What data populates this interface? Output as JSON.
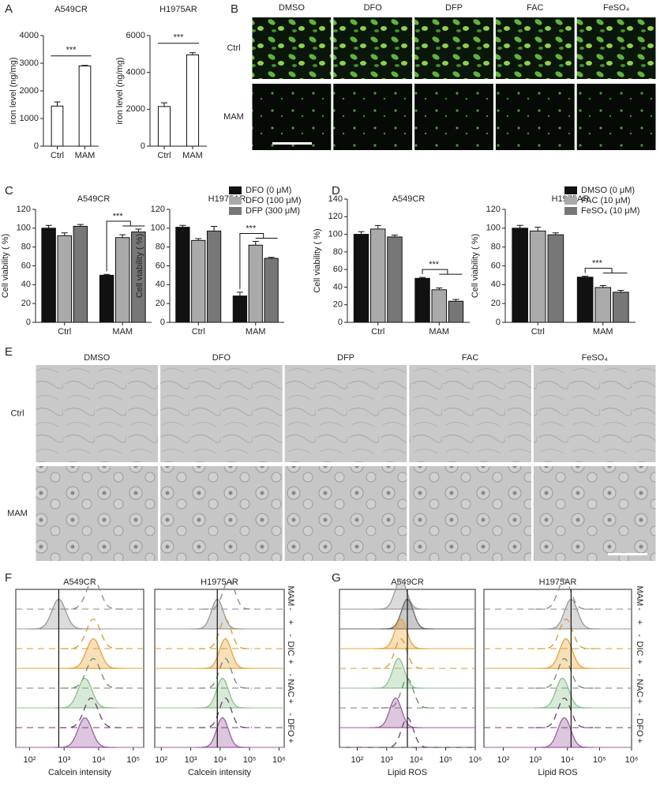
{
  "panels": {
    "A": "A",
    "B": "B",
    "C": "C",
    "D": "D",
    "E": "E",
    "F": "F",
    "G": "G"
  },
  "microscopy": {
    "fluorescence": {
      "columns": [
        "DMSO",
        "DFO",
        "DFP",
        "FAC",
        "FeSO₄"
      ],
      "rows": [
        "Ctrl",
        "MAM"
      ]
    },
    "brightfield": {
      "columns": [
        "DMSO",
        "DFO",
        "DFP",
        "FAC",
        "FeSO₄"
      ],
      "rows": [
        "Ctrl",
        "MAM"
      ]
    }
  },
  "chart_data": [
    {
      "type": "bar",
      "title": "A549CR",
      "ylabel": "iron level (ng/mg)",
      "categories": [
        "Ctrl",
        "MAM"
      ],
      "values": [
        1450,
        2900
      ],
      "errors": [
        150,
        20
      ],
      "color": "#ffffff",
      "ylim": [
        0,
        4000
      ],
      "yticks": [
        0,
        1000,
        2000,
        3000,
        4000
      ],
      "annotation": "***"
    },
    {
      "type": "bar",
      "title": "H1975AR",
      "ylabel": "iron level (ng/mg)",
      "categories": [
        "Ctrl",
        "MAM"
      ],
      "values": [
        2150,
        4950
      ],
      "errors": [
        200,
        120
      ],
      "color": "#ffffff",
      "ylim": [
        0,
        6000
      ],
      "yticks": [
        0,
        2000,
        4000,
        6000
      ],
      "annotation": "***"
    },
    {
      "type": "bar",
      "title": "A549CR",
      "ylabel": "Cell viability ( %)",
      "categories": [
        "Ctrl",
        "MAM"
      ],
      "series": [
        {
          "name": "DFO (0 μM)",
          "color": "#111111",
          "values": [
            100,
            50
          ],
          "errors": [
            3,
            1
          ]
        },
        {
          "name": "DFO (100 μM)",
          "color": "#aaaaaa",
          "values": [
            92,
            90
          ],
          "errors": [
            3,
            3
          ]
        },
        {
          "name": "DFP (300 μM)",
          "color": "#777777",
          "values": [
            102,
            96
          ],
          "errors": [
            2,
            3
          ]
        }
      ],
      "ylim": [
        0,
        120
      ],
      "yticks": [
        0,
        20,
        40,
        60,
        80,
        100,
        120
      ],
      "annotation": "***"
    },
    {
      "type": "bar",
      "title": "H1975AR",
      "ylabel": "Cell viability ( %)",
      "categories": [
        "Ctrl",
        "MAM"
      ],
      "series": [
        {
          "name": "DFO (0 μM)",
          "color": "#111111",
          "values": [
            101,
            28
          ],
          "errors": [
            2,
            4
          ]
        },
        {
          "name": "DFO (100 μM)",
          "color": "#aaaaaa",
          "values": [
            87,
            82
          ],
          "errors": [
            2,
            4
          ]
        },
        {
          "name": "DFP (300 μM)",
          "color": "#777777",
          "values": [
            97,
            68
          ],
          "errors": [
            5,
            1
          ]
        }
      ],
      "ylim": [
        0,
        120
      ],
      "yticks": [
        0,
        20,
        40,
        60,
        80,
        100,
        120
      ],
      "annotation": "***",
      "legend": true
    },
    {
      "type": "bar",
      "title": "A549CR",
      "ylabel": "Cell viability ( %)",
      "categories": [
        "Ctrl",
        "MAM"
      ],
      "series": [
        {
          "name": "DMSO (0 μM)",
          "color": "#111111",
          "values": [
            100,
            50
          ],
          "errors": [
            3,
            1
          ]
        },
        {
          "name": "FAC (10 μM)",
          "color": "#aaaaaa",
          "values": [
            106,
            37
          ],
          "errors": [
            4,
            2
          ]
        },
        {
          "name": "FeSO₄ (10 μM)",
          "color": "#777777",
          "values": [
            97,
            24
          ],
          "errors": [
            2,
            2
          ]
        }
      ],
      "ylim": [
        0,
        140
      ],
      "yticks": [
        0,
        20,
        40,
        60,
        80,
        100,
        120,
        140
      ],
      "annotation": "***"
    },
    {
      "type": "bar",
      "title": "H1975AR",
      "ylabel": "Cell viability ( %)",
      "categories": [
        "Ctrl",
        "MAM"
      ],
      "series": [
        {
          "name": "DMSO (0 μM)",
          "color": "#111111",
          "values": [
            100,
            48
          ],
          "errors": [
            3,
            1
          ]
        },
        {
          "name": "FAC (10 μM)",
          "color": "#aaaaaa",
          "values": [
            97,
            37
          ],
          "errors": [
            4,
            2
          ]
        },
        {
          "name": "FeSO₄ (10 μM)",
          "color": "#777777",
          "values": [
            93,
            32
          ],
          "errors": [
            2,
            2
          ]
        }
      ],
      "ylim": [
        0,
        120
      ],
      "yticks": [
        0,
        20,
        40,
        60,
        80,
        100,
        120
      ],
      "annotation": "***",
      "legend": true
    },
    {
      "type": "density",
      "title": "A549CR",
      "xlabel": "Calcein intensity",
      "xscale": "log",
      "xlim": [
        40,
        200000
      ],
      "xticks": [
        {
          "value": 100,
          "label": "10²"
        },
        {
          "value": 1000,
          "label": "10³"
        },
        {
          "value": 10000,
          "label": "10⁴"
        },
        {
          "value": 100000,
          "label": "10⁵"
        }
      ],
      "marker": 700,
      "series": [
        {
          "color": "#888888",
          "dashed": true,
          "peak": 7000
        },
        {
          "color": "#999999",
          "dashed": false,
          "peak": 700
        },
        {
          "color": "#d99a2b",
          "dashed": true,
          "peak": 7000
        },
        {
          "color": "#e8a33a",
          "dashed": false,
          "peak": 7000
        },
        {
          "color": "#6a8a6a",
          "dashed": true,
          "peak": 7000
        },
        {
          "color": "#8cc08c",
          "dashed": false,
          "peak": 4000
        },
        {
          "color": "#6b3f6f",
          "dashed": true,
          "peak": 6000
        },
        {
          "color": "#9b5fa0",
          "dashed": false,
          "peak": 4000
        }
      ]
    },
    {
      "type": "density",
      "title": "H1975AR",
      "xlabel": "Calcein intensity",
      "xscale": "log",
      "xlim": [
        60,
        1500000
      ],
      "xticks": [
        {
          "value": 100,
          "label": "10²"
        },
        {
          "value": 1000,
          "label": "10³"
        },
        {
          "value": 10000,
          "label": "10⁴"
        },
        {
          "value": 100000,
          "label": "10⁵"
        },
        {
          "value": 1000000,
          "label": "10⁶"
        }
      ],
      "marker": 8000,
      "series": [
        {
          "color": "#888888",
          "dashed": true,
          "peak": 20000
        },
        {
          "color": "#999999",
          "dashed": false,
          "peak": 8000
        },
        {
          "color": "#d99a2b",
          "dashed": true,
          "peak": 15000
        },
        {
          "color": "#e8a33a",
          "dashed": false,
          "peak": 15000
        },
        {
          "color": "#6a8a6a",
          "dashed": true,
          "peak": 15000
        },
        {
          "color": "#8cc08c",
          "dashed": false,
          "peak": 12000
        },
        {
          "color": "#6b3f6f",
          "dashed": true,
          "peak": 15000
        },
        {
          "color": "#9b5fa0",
          "dashed": false,
          "peak": 12000
        }
      ],
      "row_labels": [
        "MAM",
        "-",
        "+",
        "-",
        "DIC",
        "+",
        "-",
        "NAC",
        "+",
        "-",
        "DFO",
        "+"
      ]
    },
    {
      "type": "density",
      "title": "A549CR",
      "xlabel": "Lipid ROS",
      "xscale": "log",
      "xlim": [
        25,
        1000000
      ],
      "xticks": [
        {
          "value": 100,
          "label": "10²"
        },
        {
          "value": 1000,
          "label": "10³"
        },
        {
          "value": 10000,
          "label": "10⁴"
        },
        {
          "value": 100000,
          "label": "10⁵"
        },
        {
          "value": 1000000,
          "label": "10⁶"
        }
      ],
      "marker": 5000,
      "series": [
        {
          "color": "#999999",
          "dashed": false,
          "peak": 3000
        },
        {
          "color": "#666666",
          "dashed": false,
          "peak": 5000
        },
        {
          "color": "#e8a33a",
          "dashed": false,
          "peak": 3000
        },
        {
          "color": "#d99a2b",
          "dashed": true,
          "peak": 3000
        },
        {
          "color": "#8cc08c",
          "dashed": false,
          "peak": 2500
        },
        {
          "color": "#6a8a6a",
          "dashed": true,
          "peak": 5000
        },
        {
          "color": "#9b5fa0",
          "dashed": false,
          "peak": 2000
        },
        {
          "color": "#6b3f6f",
          "dashed": true,
          "peak": 5000
        }
      ]
    },
    {
      "type": "density",
      "title": "H1975AR",
      "xlabel": "Lipid ROS",
      "xscale": "log",
      "xlim": [
        25,
        1000000
      ],
      "xticks": [
        {
          "value": 100,
          "label": "10²"
        },
        {
          "value": 1000,
          "label": "10³"
        },
        {
          "value": 10000,
          "label": "10⁴"
        },
        {
          "value": 100000,
          "label": "10⁵"
        },
        {
          "value": 1000000,
          "label": "10⁶"
        }
      ],
      "marker": 13000,
      "series": [
        {
          "color": "#888888",
          "dashed": true,
          "peak": 8000
        },
        {
          "color": "#999999",
          "dashed": false,
          "peak": 13000
        },
        {
          "color": "#d99a2b",
          "dashed": true,
          "peak": 9000
        },
        {
          "color": "#e8a33a",
          "dashed": false,
          "peak": 9000
        },
        {
          "color": "#6a8a6a",
          "dashed": true,
          "peak": 8000
        },
        {
          "color": "#8cc08c",
          "dashed": false,
          "peak": 7000
        },
        {
          "color": "#6b3f6f",
          "dashed": true,
          "peak": 8000
        },
        {
          "color": "#9b5fa0",
          "dashed": false,
          "peak": 8000
        }
      ],
      "row_labels": [
        "MAM",
        "-",
        "+",
        "-",
        "DIC",
        "+",
        "-",
        "NAC",
        "+",
        "-",
        "DFO",
        "+"
      ]
    }
  ]
}
